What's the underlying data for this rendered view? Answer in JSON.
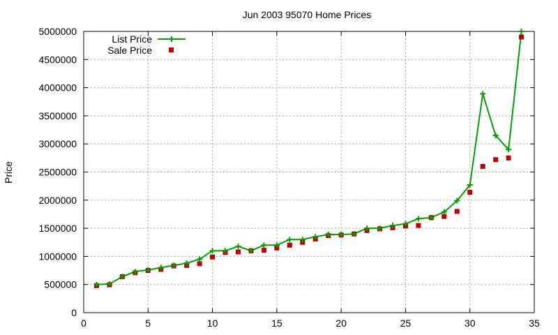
{
  "chart_data": {
    "type": "line",
    "title": "Jun 2003 95070 Home Prices",
    "xlabel": "",
    "ylabel": "Price",
    "xlim": [
      0,
      35
    ],
    "ylim": [
      0,
      5000000
    ],
    "x_ticks": [
      0,
      5,
      10,
      15,
      20,
      25,
      30,
      35
    ],
    "y_ticks": [
      0,
      500000,
      1000000,
      1500000,
      2000000,
      2500000,
      3000000,
      3500000,
      4000000,
      4500000,
      5000000
    ],
    "grid": true,
    "legend_position": "top-left",
    "series": [
      {
        "name": "List Price",
        "style": "linespoints",
        "marker": "plus",
        "color": "#00a000",
        "x": [
          1,
          2,
          3,
          4,
          5,
          6,
          7,
          8,
          9,
          10,
          11,
          12,
          13,
          14,
          15,
          16,
          17,
          18,
          19,
          20,
          21,
          22,
          23,
          24,
          25,
          26,
          27,
          28,
          29,
          30,
          31,
          32,
          33,
          34
        ],
        "values": [
          500000,
          510000,
          640000,
          730000,
          760000,
          800000,
          840000,
          880000,
          950000,
          1100000,
          1100000,
          1180000,
          1100000,
          1200000,
          1200000,
          1300000,
          1300000,
          1350000,
          1390000,
          1390000,
          1400000,
          1500000,
          1500000,
          1550000,
          1580000,
          1670000,
          1690000,
          1790000,
          1990000,
          2270000,
          3890000,
          3150000,
          2900000,
          5000000
        ]
      },
      {
        "name": "Sale Price",
        "style": "points",
        "marker": "square",
        "color": "#c00000",
        "x": [
          1,
          2,
          3,
          4,
          5,
          6,
          7,
          8,
          9,
          10,
          11,
          12,
          13,
          14,
          15,
          16,
          17,
          18,
          19,
          20,
          21,
          22,
          23,
          24,
          25,
          26,
          27,
          28,
          29,
          30,
          31,
          32,
          33,
          34
        ],
        "values": [
          480000,
          495000,
          640000,
          710000,
          750000,
          770000,
          830000,
          840000,
          870000,
          990000,
          1070000,
          1080000,
          1100000,
          1110000,
          1150000,
          1200000,
          1250000,
          1310000,
          1370000,
          1380000,
          1400000,
          1460000,
          1490000,
          1510000,
          1540000,
          1550000,
          1690000,
          1710000,
          1800000,
          2140000,
          2600000,
          2720000,
          2750000,
          4900000
        ]
      }
    ]
  }
}
